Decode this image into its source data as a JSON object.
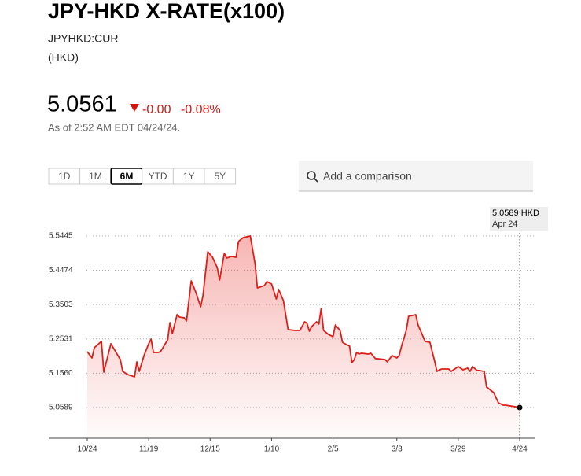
{
  "header": {
    "title": "JPY-HKD X-RATE(x100)",
    "ticker": "JPYHKD:CUR",
    "currency": "(HKD)",
    "price": "5.0561",
    "change": "-0.00",
    "change_pct": "-0.08%",
    "as_of": "As of 2:52 AM EDT 04/24/24."
  },
  "ranges": {
    "items": [
      "1D",
      "1M",
      "6M",
      "YTD",
      "1Y",
      "5Y"
    ],
    "selected": 2
  },
  "search": {
    "placeholder": "Add a comparison"
  },
  "tooltip": {
    "value": "5.0589 HKD",
    "date": "Apr 24"
  },
  "chart_data": {
    "type": "line",
    "color": "#dd1f1a",
    "grid": true,
    "x": [
      0,
      2,
      3,
      6,
      7,
      10,
      12,
      14,
      15,
      17,
      20,
      21,
      22,
      24,
      26,
      27,
      28,
      30,
      31,
      34,
      35,
      36,
      38,
      39,
      41,
      42,
      44,
      46,
      48,
      49,
      51,
      53,
      55,
      56,
      58,
      59,
      61,
      63,
      64,
      66,
      69,
      71,
      72,
      75,
      76,
      78,
      80,
      81,
      83,
      85,
      88,
      90,
      92,
      93,
      94,
      95,
      97,
      98,
      99,
      100,
      102,
      104,
      105,
      107,
      108,
      109,
      111,
      112,
      113,
      114,
      115,
      116,
      119,
      120,
      122,
      123,
      126,
      127,
      129,
      131,
      132,
      133,
      135,
      136,
      139,
      140,
      143,
      145,
      147,
      148,
      150,
      153,
      154,
      157,
      159,
      161,
      162,
      163,
      165,
      166,
      168,
      169,
      172,
      174,
      176,
      177,
      179,
      183
    ],
    "values": [
      5.217,
      5.1992,
      5.2282,
      5.246,
      5.1591,
      5.2393,
      5.217,
      5.1947,
      5.1613,
      5.1524,
      5.1458,
      5.1881,
      5.1613,
      5.2059,
      5.2393,
      5.2526,
      5.2148,
      5.2148,
      5.217,
      5.2504,
      5.2994,
      5.2682,
      5.3217,
      5.315,
      5.3128,
      5.3039,
      5.4174,
      5.384,
      5.344,
      5.3774,
      5.4998,
      5.4843,
      5.4553,
      5.4197,
      5.4954,
      5.482,
      5.4865,
      5.4843,
      5.5288,
      5.5399,
      5.5444,
      5.4664,
      5.3974,
      5.4041,
      5.4152,
      5.4085,
      5.3662,
      5.393,
      5.3618,
      5.2794,
      5.2771,
      5.2771,
      5.3016,
      5.2972,
      5.2749,
      5.2883,
      5.3016,
      5.295,
      5.3395,
      5.2771,
      5.266,
      5.2593,
      5.2927,
      5.2771,
      5.2437,
      5.2393,
      5.2326,
      5.1858,
      5.1947,
      5.2148,
      5.2103,
      5.2126,
      5.2103,
      5.2126,
      5.197,
      5.197,
      5.1947,
      5.1881,
      5.2059,
      5.1992,
      5.2059,
      5.2326,
      5.2771,
      5.3172,
      5.3217,
      5.2927,
      5.246,
      5.2437,
      5.1903,
      5.1613,
      5.168,
      5.168,
      5.1613,
      5.1747,
      5.1658,
      5.1703,
      5.1613,
      5.1747,
      5.1636,
      5.1636,
      5.1613,
      5.1168,
      5.1012,
      5.0723,
      5.0656,
      5.0656,
      5.0634,
      5.0589
    ],
    "xlim": [
      0,
      183
    ],
    "xticks": [
      {
        "value": 0,
        "label": "10/24"
      },
      {
        "value": 26,
        "label": "11/19"
      },
      {
        "value": 52,
        "label": "12/15"
      },
      {
        "value": 78,
        "label": "1/10"
      },
      {
        "value": 104,
        "label": "2/5"
      },
      {
        "value": 131,
        "label": "3/3"
      },
      {
        "value": 157,
        "label": "3/29"
      },
      {
        "value": 183,
        "label": "4/24"
      }
    ],
    "ylim": [
      4.972,
      5.571
    ],
    "yticks": [
      {
        "value": 5.0589,
        "label": "5.0589"
      },
      {
        "value": 5.156,
        "label": "5.1560"
      },
      {
        "value": 5.2531,
        "label": "5.2531"
      },
      {
        "value": 5.3503,
        "label": "5.3503"
      },
      {
        "value": 5.4474,
        "label": "5.4474"
      },
      {
        "value": 5.5445,
        "label": "5.5445"
      }
    ]
  }
}
